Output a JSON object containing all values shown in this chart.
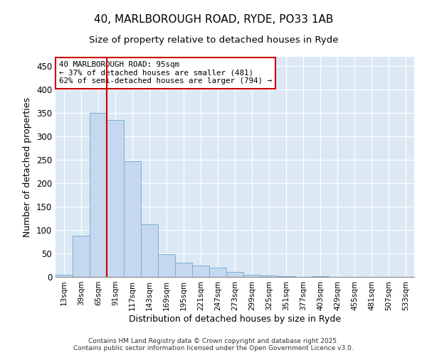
{
  "title_line1": "40, MARLBOROUGH ROAD, RYDE, PO33 1AB",
  "title_line2": "Size of property relative to detached houses in Ryde",
  "xlabel": "Distribution of detached houses by size in Ryde",
  "ylabel": "Number of detached properties",
  "categories": [
    "13sqm",
    "39sqm",
    "65sqm",
    "91sqm",
    "117sqm",
    "143sqm",
    "169sqm",
    "195sqm",
    "221sqm",
    "247sqm",
    "273sqm",
    "299sqm",
    "325sqm",
    "351sqm",
    "377sqm",
    "403sqm",
    "429sqm",
    "455sqm",
    "481sqm",
    "507sqm",
    "533sqm"
  ],
  "values": [
    5,
    88,
    350,
    335,
    247,
    112,
    48,
    30,
    25,
    20,
    10,
    5,
    3,
    2,
    0,
    1,
    0,
    0,
    0,
    0,
    0
  ],
  "bar_color": "#c5d8ef",
  "bar_edge_color": "#7aafd4",
  "vline_color": "#cc0000",
  "annotation_text": "40 MARLBOROUGH ROAD: 95sqm\n← 37% of detached houses are smaller (481)\n62% of semi-detached houses are larger (794) →",
  "annotation_box_color": "#ffffff",
  "annotation_box_edge": "#cc0000",
  "ylim": [
    0,
    470
  ],
  "yticks": [
    0,
    50,
    100,
    150,
    200,
    250,
    300,
    350,
    400,
    450
  ],
  "background_color": "#dce9f5",
  "grid_color": "#ffffff",
  "footer_line1": "Contains HM Land Registry data © Crown copyright and database right 2025.",
  "footer_line2": "Contains public sector information licensed under the Open Government Licence v3.0."
}
